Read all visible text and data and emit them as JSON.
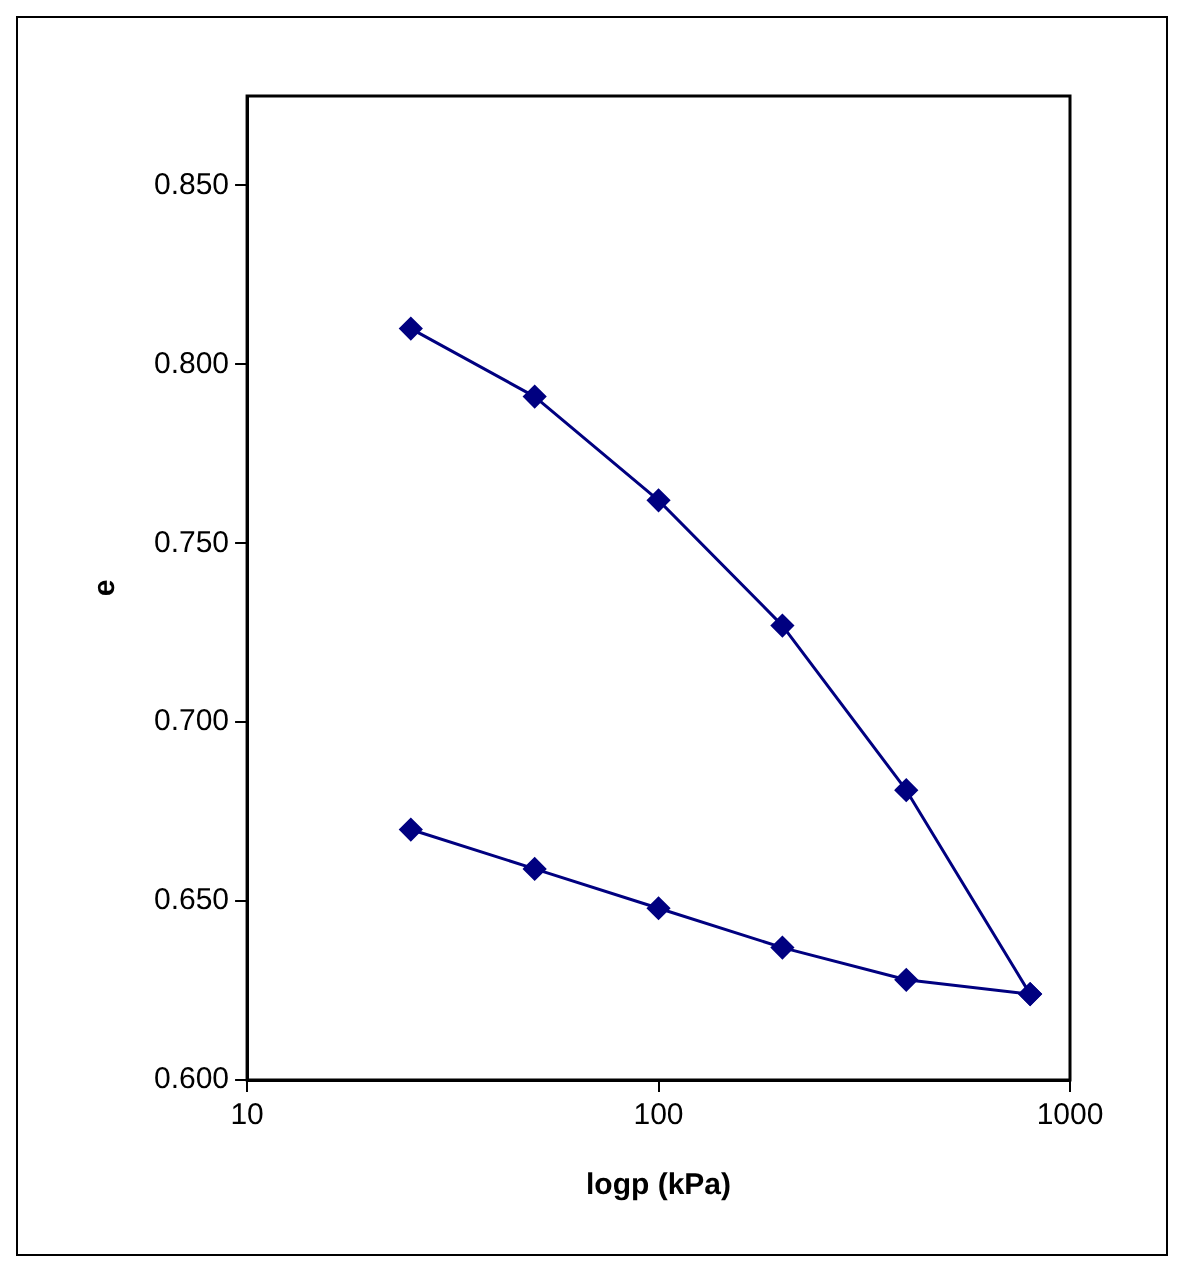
{
  "chart_data": {
    "type": "line",
    "xlabel": "logp (kPa)",
    "ylabel": "e",
    "log": "x",
    "xlim": [
      10,
      1000
    ],
    "xticks": [
      10,
      100,
      1000
    ],
    "ylim": [
      0.6,
      0.875
    ],
    "yticks": [
      {
        "value": 0.6,
        "label": "0.600"
      },
      {
        "value": 0.65,
        "label": "0.650"
      },
      {
        "value": 0.7,
        "label": "0.700"
      },
      {
        "value": 0.75,
        "label": "0.750"
      },
      {
        "value": 0.8,
        "label": "0.800"
      },
      {
        "value": 0.85,
        "label": "0.850"
      }
    ],
    "grid": false,
    "legend": false,
    "marker": "diamond",
    "line_style": "solid",
    "x": [
      25,
      50,
      100,
      200,
      400,
      800
    ],
    "series": [
      {
        "color": "#000080",
        "values": [
          0.81,
          0.791,
          0.762,
          0.727,
          0.681,
          0.624
        ]
      },
      {
        "color": "#000080",
        "values": [
          0.67,
          0.659,
          0.648,
          0.637,
          0.628,
          0.624
        ]
      }
    ]
  }
}
